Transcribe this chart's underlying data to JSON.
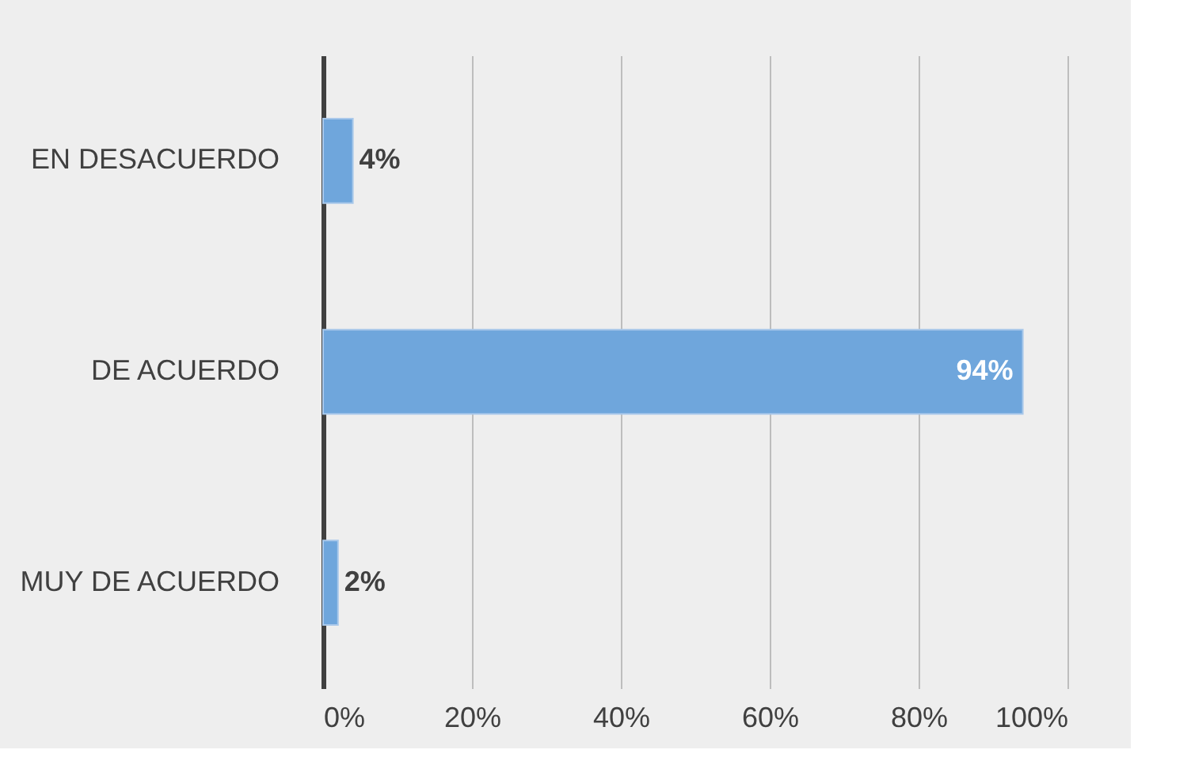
{
  "chart_data": {
    "type": "bar",
    "orientation": "horizontal",
    "categories": [
      "EN DESACUERDO",
      "DE ACUERDO",
      "MUY DE ACUERDO"
    ],
    "values": [
      4,
      94,
      2
    ],
    "value_labels": [
      "4%",
      "94%",
      "2%"
    ],
    "color": "#6fa6dc",
    "xlim": [
      0,
      100
    ],
    "xticks": [
      {
        "value": 0,
        "label": "0%"
      },
      {
        "value": 20,
        "label": "20%"
      },
      {
        "value": 40,
        "label": "40%"
      },
      {
        "value": 60,
        "label": "60%"
      },
      {
        "value": 80,
        "label": "80%"
      },
      {
        "value": 100,
        "label": "100%"
      }
    ],
    "grid": "x"
  }
}
